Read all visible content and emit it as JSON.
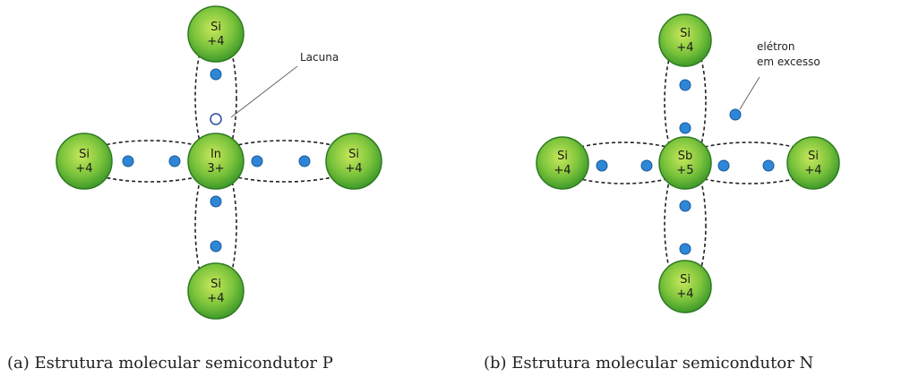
{
  "panels": [
    {
      "atoms": [
        {
          "symbol": "In",
          "charge": "3+"
        },
        {
          "symbol": "Si",
          "charge": "+4"
        },
        {
          "symbol": "Si",
          "charge": "+4"
        },
        {
          "symbol": "Si",
          "charge": "+4"
        },
        {
          "symbol": "Si",
          "charge": "+4"
        }
      ],
      "annotation": [
        "Lacuna"
      ],
      "caption": "(a) Estrutura molecular semicondutor P"
    },
    {
      "atoms": [
        {
          "symbol": "Sb",
          "charge": "+5"
        },
        {
          "symbol": "Si",
          "charge": "+4"
        },
        {
          "symbol": "Si",
          "charge": "+4"
        },
        {
          "symbol": "Si",
          "charge": "+4"
        },
        {
          "symbol": "Si",
          "charge": "+4"
        }
      ],
      "annotation": [
        "elétron",
        "em excesso"
      ],
      "caption": "(b) Estrutura molecular semicondutor N"
    }
  ]
}
